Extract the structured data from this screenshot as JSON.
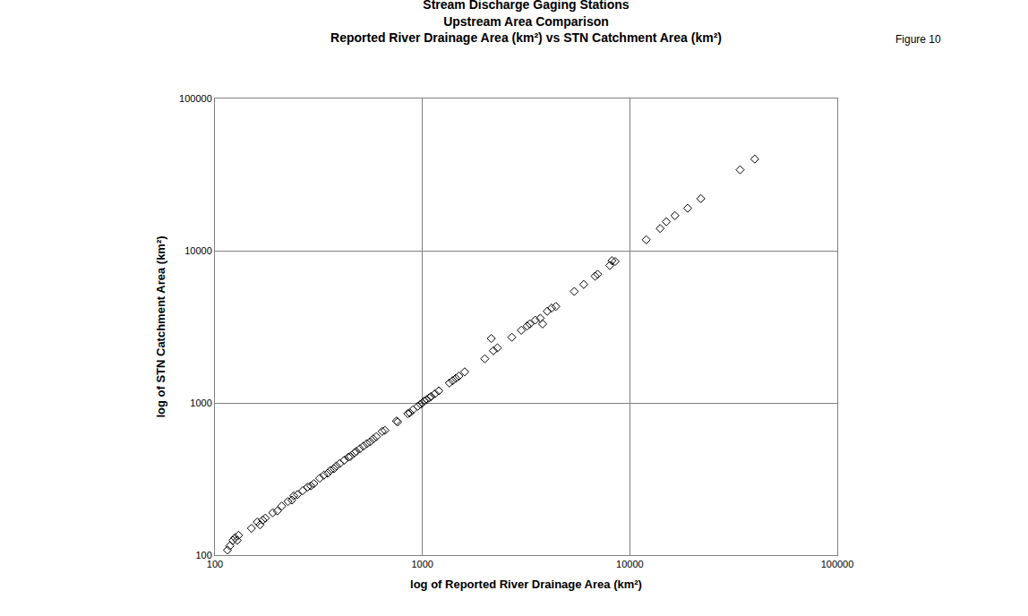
{
  "chart_data": {
    "type": "scatter",
    "title": "Stream Discharge Gaging Stations",
    "subtitle": [
      "Upstream Area Comparison",
      "Reported River Drainage Area (km²) vs STN Catchment Area (km²)"
    ],
    "annotations": [
      "Figure 10"
    ],
    "xlabel": "log of Reported River Drainage Area (km²)",
    "ylabel": "log of STN Catchment Area (km²)",
    "x": [
      115,
      118,
      122,
      125,
      128,
      130,
      150,
      160,
      165,
      170,
      175,
      190,
      200,
      210,
      225,
      235,
      240,
      250,
      265,
      280,
      290,
      300,
      320,
      335,
      350,
      360,
      375,
      385,
      400,
      420,
      440,
      450,
      470,
      480,
      500,
      520,
      540,
      560,
      580,
      600,
      640,
      660,
      750,
      760,
      850,
      870,
      900,
      950,
      980,
      1000,
      1020,
      1050,
      1080,
      1100,
      1150,
      1200,
      1350,
      1400,
      1450,
      1500,
      1600,
      2000,
      2150,
      2200,
      2300,
      2700,
      3000,
      3200,
      3300,
      3500,
      3700,
      3800,
      4000,
      4200,
      4400,
      5400,
      6000,
      6800,
      7000,
      8000,
      8200,
      8500,
      12000,
      14000,
      15000,
      16500,
      19000,
      22000,
      34000,
      40000
    ],
    "values": [
      108,
      115,
      125,
      130,
      125,
      135,
      150,
      165,
      158,
      170,
      175,
      190,
      195,
      210,
      225,
      230,
      245,
      250,
      265,
      280,
      285,
      295,
      320,
      335,
      345,
      360,
      370,
      385,
      400,
      420,
      440,
      445,
      470,
      480,
      500,
      520,
      540,
      555,
      580,
      600,
      650,
      660,
      760,
      750,
      850,
      860,
      900,
      950,
      980,
      1000,
      1030,
      1050,
      1080,
      1100,
      1150,
      1200,
      1350,
      1400,
      1450,
      1500,
      1600,
      1950,
      2650,
      2200,
      2300,
      2700,
      3000,
      3200,
      3300,
      3500,
      3600,
      3300,
      4000,
      4200,
      4300,
      5400,
      6000,
      6800,
      7000,
      8000,
      8600,
      8500,
      11800,
      14000,
      15500,
      17000,
      19000,
      22000,
      34000,
      40000
    ],
    "color": "#000000",
    "marker": "diamond-open",
    "xlim": [
      100,
      100000
    ],
    "ylim": [
      100,
      100000
    ],
    "xticks": [
      100,
      1000,
      10000,
      100000
    ],
    "yticks": [
      100,
      1000,
      10000,
      100000
    ],
    "log": true,
    "grid": true
  }
}
